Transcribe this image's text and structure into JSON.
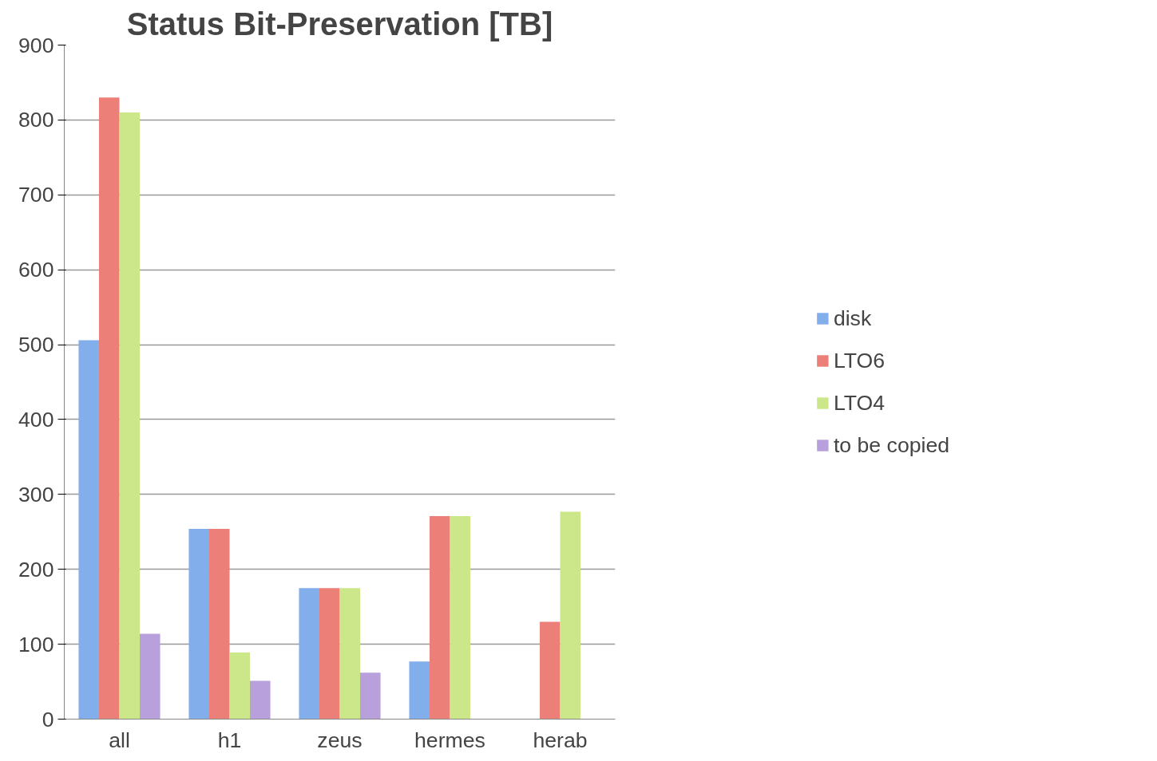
{
  "chart_data": {
    "type": "bar",
    "title": "Status Bit-Preservation [TB]",
    "categories": [
      "all",
      "h1",
      "zeus",
      "hermes",
      "herab"
    ],
    "series": [
      {
        "name": "disk",
        "color": "#82aeec",
        "values": [
          506,
          254,
          175,
          77,
          null
        ]
      },
      {
        "name": "LTO6",
        "color": "#ec7f78",
        "values": [
          830,
          254,
          175,
          271,
          130
        ]
      },
      {
        "name": "LTO4",
        "color": "#cbe78a",
        "values": [
          810,
          89,
          175,
          271,
          277
        ]
      },
      {
        "name": "to be copied",
        "color": "#b8a0dc",
        "values": [
          114,
          51,
          62,
          null,
          null
        ]
      }
    ],
    "ylim": [
      0,
      900
    ],
    "yticks": [
      0,
      100,
      200,
      300,
      400,
      500,
      600,
      700,
      800,
      900
    ],
    "grid": "y",
    "legend": "right"
  }
}
